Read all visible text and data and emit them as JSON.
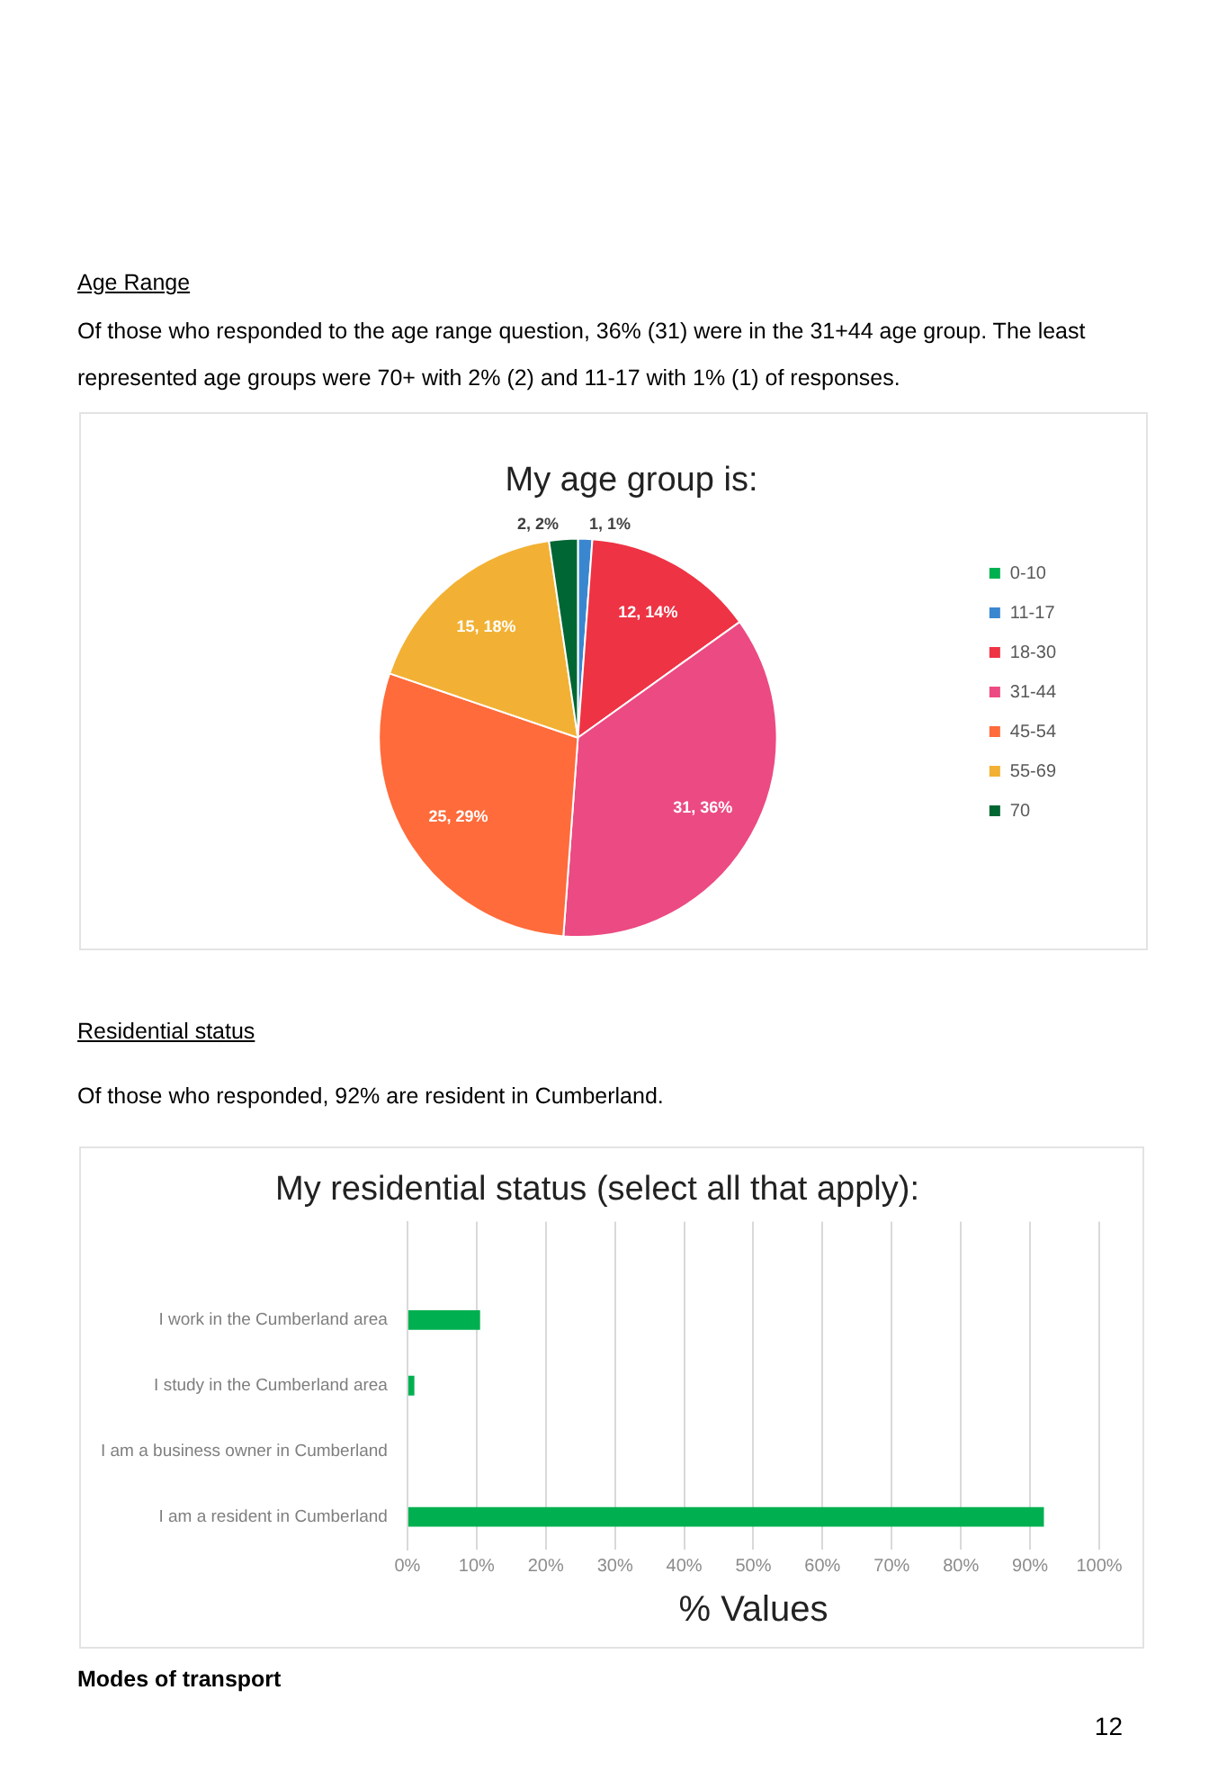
{
  "chart_data": [
    {
      "type": "pie",
      "title": "My age group is:",
      "annotations": [
        "Age Range",
        "Of those who responded to the age range question, 36% (31) were in the 31+44 age group. The least represented age groups were 70+ with 2% (2)  and 11-17 with 1% (1) of responses."
      ],
      "categories": [
        "0-10",
        "11-17",
        "18-30",
        "31-44",
        "45-54",
        "55-69",
        "70"
      ],
      "values": [
        0,
        1,
        12,
        31,
        25,
        15,
        2
      ],
      "colors": [
        "#00b050",
        "#3a87d0",
        "#ee3344",
        "#ec4a82",
        "#ff6b3a",
        "#f2b134",
        "#006633"
      ],
      "value_labels": [
        null,
        "1, 1%",
        "12, 14%",
        "31, 36%",
        "25, 29%",
        "15, 18%",
        "2, 2%"
      ],
      "legend": "right"
    },
    {
      "type": "bar",
      "orientation": "horizontal",
      "title": "My residential status (select all that apply):",
      "xlabel": "% Values",
      "annotations": [
        "Residential status",
        "Of those who responded, 92% are resident in Cumberland.",
        "Modes of transport",
        "12"
      ],
      "categories": [
        null,
        "I work in the Cumberland area",
        "I study in the Cumberland area",
        "I am a business owner in Cumberland",
        "I am a resident in Cumberland"
      ],
      "values": [
        null,
        10.5,
        1,
        0,
        92
      ],
      "color": "#00b050",
      "xlim": [
        0,
        100
      ],
      "xticks": [
        {
          "value": 0,
          "label": "0%"
        },
        {
          "value": 10,
          "label": "10%"
        },
        {
          "value": 20,
          "label": "20%"
        },
        {
          "value": 30,
          "label": "30%"
        },
        {
          "value": 40,
          "label": "40%"
        },
        {
          "value": 50,
          "label": "50%"
        },
        {
          "value": 60,
          "label": "60%"
        },
        {
          "value": 70,
          "label": "70%"
        },
        {
          "value": 80,
          "label": "80%"
        },
        {
          "value": 90,
          "label": "90%"
        },
        {
          "value": 100,
          "label": "100%"
        }
      ],
      "grid": "x",
      "legend": false
    }
  ]
}
